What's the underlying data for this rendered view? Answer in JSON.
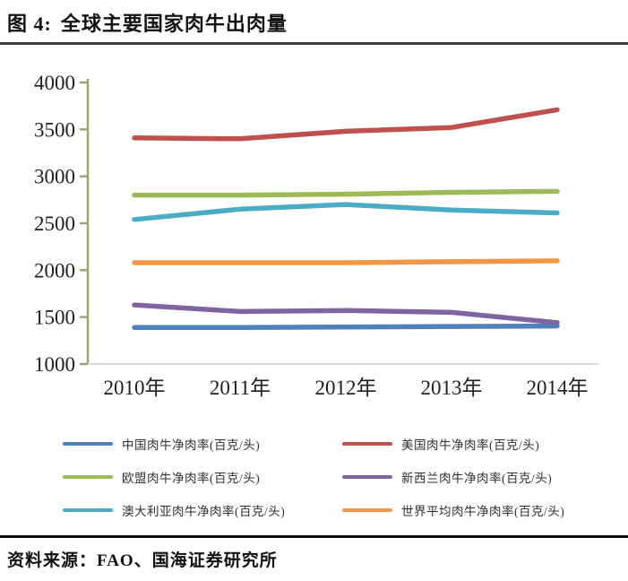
{
  "header": {
    "figure_label": "图 4:",
    "title": "全球主要国家肉牛出肉量"
  },
  "chart_data": {
    "type": "line",
    "title": "全球主要国家肉牛出肉量",
    "xlabel": "",
    "ylabel": "",
    "unit": "百克/头",
    "categories": [
      "2010年",
      "2011年",
      "2012年",
      "2013年",
      "2014年"
    ],
    "ylim": [
      1000,
      4000
    ],
    "ytick_step": 500,
    "yticks": [
      4000,
      3500,
      3000,
      2500,
      2000,
      1500,
      1000
    ],
    "grid": false,
    "legend_position": "bottom",
    "axis_color": "#a6a171",
    "baseline_color": "#d9d9d9",
    "series": [
      {
        "name": "中国肉牛净肉率(百克/头)",
        "color": "#4f81bd",
        "values": [
          1390,
          1390,
          1395,
          1400,
          1405
        ]
      },
      {
        "name": "美国肉牛净肉率(百克/头)",
        "color": "#c0504d",
        "values": [
          3410,
          3400,
          3480,
          3520,
          3710
        ]
      },
      {
        "name": "欧盟肉牛净肉率(百克/头)",
        "color": "#9bbb59",
        "values": [
          2800,
          2800,
          2810,
          2830,
          2840
        ]
      },
      {
        "name": "新西兰肉牛净肉率(百克/头)",
        "color": "#8064a2",
        "values": [
          1630,
          1560,
          1570,
          1550,
          1440
        ]
      },
      {
        "name": "澳大利亚肉牛净肉率(百克/头)",
        "color": "#4bacc6",
        "values": [
          2540,
          2650,
          2700,
          2640,
          2610
        ]
      },
      {
        "name": "世界平均肉牛净肉率(百克/头)",
        "color": "#f79646",
        "values": [
          2080,
          2080,
          2080,
          2090,
          2100
        ]
      }
    ]
  },
  "footer": {
    "source": "资料来源：FAO、国海证券研究所"
  }
}
